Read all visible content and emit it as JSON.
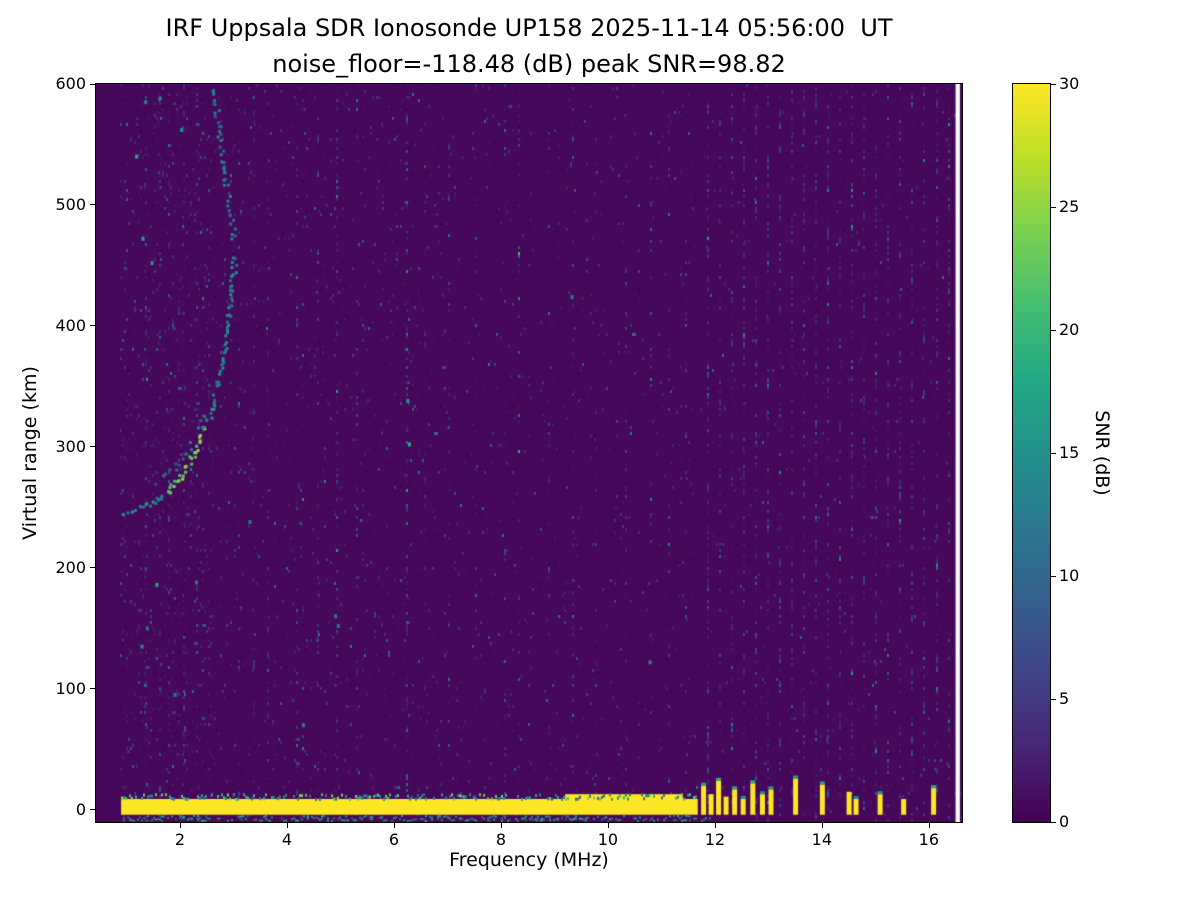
{
  "chart": {
    "title_line1": "IRF Uppsala SDR Ionosonde UP158 2025-11-14 05:56:00  UT",
    "title_line2": "noise_floor=-118.48 (dB) peak SNR=98.82",
    "xlabel": "Frequency (MHz)",
    "ylabel": "Virtual range (km)",
    "colorbar": {
      "label": "SNR (dB)"
    }
  },
  "chart_data": {
    "type": "heatmap",
    "title": "IRF Uppsala SDR Ionosonde UP158 2025-11-14 05:56:00  UT",
    "subtitle": "noise_floor=-118.48 (dB) peak SNR=98.82",
    "station": "UP158",
    "timestamp_ut": "2025-11-14 05:56:00",
    "noise_floor_db": -118.48,
    "peak_snr_db": 98.82,
    "xlabel": "Frequency (MHz)",
    "ylabel": "Virtual range (km)",
    "xlim": [
      0.43,
      16.62
    ],
    "ylim": [
      -10,
      600
    ],
    "x_ticks": [
      2,
      4,
      6,
      8,
      10,
      12,
      14,
      16
    ],
    "y_ticks": [
      0,
      100,
      200,
      300,
      400,
      500,
      600
    ],
    "grid": false,
    "colorbar": {
      "label": "SNR (dB)",
      "range": [
        0,
        30
      ],
      "ticks": [
        0,
        5,
        10,
        15,
        20,
        25,
        30
      ],
      "colormap": "viridis",
      "position": "right"
    },
    "colormap_stops": [
      [
        0.0,
        [
          68,
          1,
          84
        ]
      ],
      [
        0.1,
        [
          72,
          36,
          117
        ]
      ],
      [
        0.2,
        [
          64,
          67,
          135
        ]
      ],
      [
        0.3,
        [
          52,
          95,
          141
        ]
      ],
      [
        0.4,
        [
          42,
          120,
          142
        ]
      ],
      [
        0.5,
        [
          33,
          145,
          140
        ]
      ],
      [
        0.6,
        [
          34,
          168,
          132
        ]
      ],
      [
        0.7,
        [
          68,
          190,
          112
        ]
      ],
      [
        0.8,
        [
          122,
          209,
          81
        ]
      ],
      [
        0.9,
        [
          189,
          223,
          38
        ]
      ],
      [
        1.0,
        [
          253,
          231,
          37
        ]
      ]
    ],
    "background_snr": 0.6,
    "data_f_start": 0.88,
    "ground_band": {
      "f_start": 0.9,
      "f_end": 11.68,
      "top_km": 9,
      "bottom_km": -4,
      "snr": 30
    },
    "band_bulges": [
      {
        "f_start": 9.2,
        "f_end": 11.4,
        "top_km": 13
      }
    ],
    "bottom_scatter_row_km": -8,
    "ground_blobs": [
      [
        11.78,
        20
      ],
      [
        11.92,
        13
      ],
      [
        12.06,
        24
      ],
      [
        12.2,
        11
      ],
      [
        12.36,
        17
      ],
      [
        12.52,
        9
      ],
      [
        12.7,
        22
      ],
      [
        12.88,
        13
      ],
      [
        13.04,
        17
      ],
      [
        13.5,
        26
      ],
      [
        14.0,
        21
      ],
      [
        14.5,
        15
      ],
      [
        14.63,
        9
      ],
      [
        15.08,
        13
      ],
      [
        15.52,
        9
      ],
      [
        16.08,
        18
      ]
    ],
    "echo_trace_main": [
      [
        0.95,
        246
      ],
      [
        1.05,
        248
      ],
      [
        1.15,
        250
      ],
      [
        1.3,
        252
      ],
      [
        1.45,
        255
      ],
      [
        1.6,
        259
      ],
      [
        1.75,
        264
      ],
      [
        1.9,
        271
      ],
      [
        2.0,
        277
      ],
      [
        2.1,
        284
      ],
      [
        2.2,
        292
      ],
      [
        2.3,
        301
      ],
      [
        2.4,
        311
      ],
      [
        2.5,
        323
      ],
      [
        2.6,
        338
      ],
      [
        2.7,
        356
      ],
      [
        2.78,
        376
      ],
      [
        2.86,
        398
      ],
      [
        2.92,
        420
      ],
      [
        2.97,
        441
      ],
      [
        3.01,
        460
      ]
    ],
    "echo_trace_upper": [
      [
        2.99,
        472
      ],
      [
        2.94,
        489
      ],
      [
        2.89,
        506
      ],
      [
        2.83,
        523
      ],
      [
        2.78,
        540
      ],
      [
        2.73,
        556
      ],
      [
        2.68,
        572
      ],
      [
        2.64,
        586
      ],
      [
        2.6,
        598
      ]
    ],
    "echo_trace_second": [
      [
        1.5,
        271
      ],
      [
        1.7,
        277
      ],
      [
        1.9,
        284
      ],
      [
        2.1,
        297
      ],
      [
        2.3,
        313
      ],
      [
        2.45,
        330
      ]
    ],
    "interference_stripes": [
      [
        1.35,
        0.22,
        3.0
      ],
      [
        1.6,
        0.14,
        2.5
      ],
      [
        1.78,
        0.2,
        3.0
      ],
      [
        2.06,
        0.18,
        3.0
      ],
      [
        2.3,
        0.1,
        2.5
      ],
      [
        2.52,
        0.12,
        2.5
      ],
      [
        3.08,
        0.1,
        2.5
      ],
      [
        3.36,
        0.2,
        3.0
      ],
      [
        3.62,
        0.12,
        2.5
      ],
      [
        4.16,
        0.15,
        2.8
      ],
      [
        4.56,
        0.12,
        2.5
      ],
      [
        4.92,
        0.25,
        3.5
      ],
      [
        5.3,
        0.12,
        2.5
      ],
      [
        5.76,
        0.1,
        2.5
      ],
      [
        6.22,
        0.28,
        3.5
      ],
      [
        6.56,
        0.1,
        2.5
      ],
      [
        7.02,
        0.12,
        2.5
      ],
      [
        7.52,
        0.1,
        2.5
      ],
      [
        8.05,
        0.1,
        2.5
      ],
      [
        8.32,
        0.18,
        3.0
      ],
      [
        8.88,
        0.12,
        2.5
      ],
      [
        9.32,
        0.2,
        3.0
      ],
      [
        9.76,
        0.1,
        2.5
      ],
      [
        10.32,
        0.16,
        3.0
      ],
      [
        10.78,
        0.13,
        2.8
      ],
      [
        11.12,
        0.12,
        2.5
      ],
      [
        11.45,
        0.1,
        2.5
      ]
    ],
    "stripe_series": {
      "f_start": 11.85,
      "f_end": 16.4,
      "spacing": 0.225,
      "density": 0.32,
      "value": 2.4
    },
    "bright_spots": [
      [
        1.35,
        585
      ],
      [
        1.62,
        588
      ],
      [
        2.02,
        562
      ],
      [
        2.62,
        592
      ],
      [
        1.18,
        540
      ],
      [
        1.3,
        472
      ],
      [
        1.47,
        452
      ],
      [
        4.95,
        152
      ],
      [
        4.9,
        160
      ],
      [
        6.25,
        338
      ],
      [
        6.28,
        302
      ],
      [
        9.32,
        424
      ],
      [
        10.78,
        122
      ],
      [
        2.3,
        188
      ],
      [
        1.56,
        186
      ],
      [
        1.38,
        150
      ],
      [
        1.28,
        135
      ],
      [
        1.9,
        95
      ],
      [
        3.3,
        238
      ],
      [
        4.3,
        70
      ]
    ],
    "nan_column": {
      "f_start": 16.5,
      "f_end": 16.58
    }
  }
}
